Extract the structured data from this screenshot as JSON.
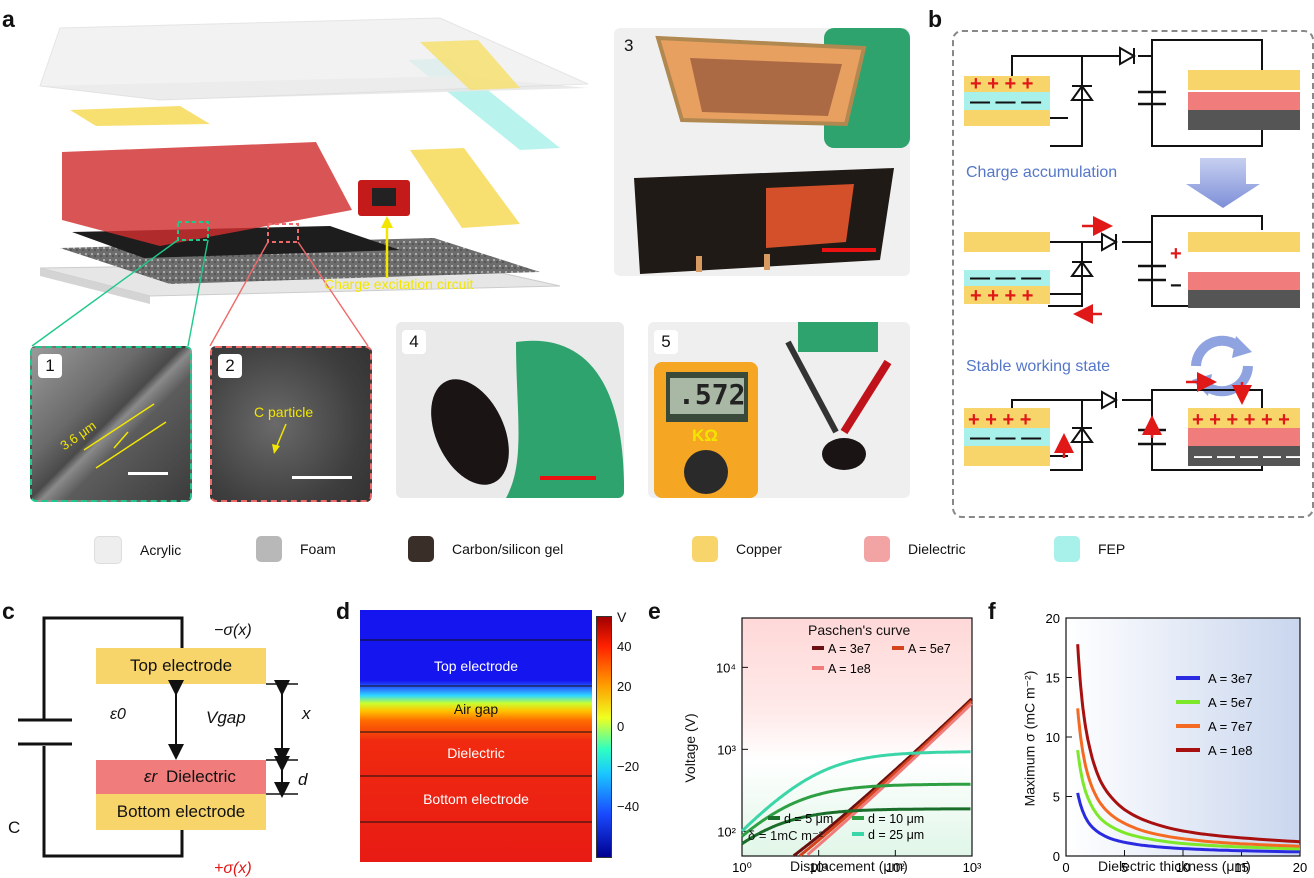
{
  "panel_labels": {
    "a": "a",
    "b": "b",
    "c": "c",
    "d": "d",
    "e": "e",
    "f": "f"
  },
  "panel_a": {
    "callout": "Charge excitation circuit",
    "insets": [
      "1",
      "2",
      "3",
      "4",
      "5"
    ],
    "thickness": "3.6 μm",
    "particle": "C particle",
    "meter_reading": ".572",
    "meter_unit": "KΩ"
  },
  "panel_b": {
    "step1": "Charge accumulation",
    "step2": "Stable working state"
  },
  "legend": [
    {
      "label": "Acrylic",
      "color": "#eeeeee"
    },
    {
      "label": "Foam",
      "color": "#b8b8b8"
    },
    {
      "label": "Carbon/silicon gel",
      "color": "#3a2e28"
    },
    {
      "label": "Copper",
      "color": "#f8d56a"
    },
    {
      "label": "Dielectric",
      "color": "#f2a3a3"
    },
    {
      "label": "FEP",
      "color": "#a8f0ea"
    }
  ],
  "panel_c": {
    "top_electrode": "Top electrode",
    "dielectric": "Dielectric",
    "bottom_electrode": "Bottom electrode",
    "eps0": "ε0",
    "eps_r": "εr",
    "vgap": "Vgap",
    "x": "x",
    "d": "d",
    "C": "C",
    "minus_sigma": "−σ(x)",
    "plus_sigma": "+σ(x)"
  },
  "panel_d": {
    "layers": [
      "Top electrode",
      "Air gap",
      "Dielectric",
      "Bottom electrode"
    ],
    "colorbar_unit": "V",
    "colorbar_ticks": [
      "40",
      "20",
      "0",
      "−20",
      "−40"
    ]
  },
  "chart_data": [
    {
      "panel": "e",
      "type": "line",
      "xscale": "log",
      "yscale": "log",
      "xlabel": "Displacement (μm)",
      "ylabel": "Voltage (V)",
      "xlim": [
        1,
        1000
      ],
      "ylim": [
        50,
        40000
      ],
      "xticks": [
        "10⁰",
        "10¹",
        "10²",
        "10³"
      ],
      "yticks": [
        "10²",
        "10³",
        "10⁴"
      ],
      "annotation_title": "Paschen's curve",
      "annotation_delta": "δ = 1mC m⁻²",
      "series": [
        {
          "name": "A = 3e7",
          "kind": "paschen",
          "color": "#6b1010",
          "A": 30000000.0
        },
        {
          "name": "A = 5e7",
          "kind": "paschen",
          "color": "#d4441c",
          "A": 50000000.0
        },
        {
          "name": "A = 1e8",
          "kind": "paschen",
          "color": "#f07b7b",
          "A": 100000000.0
        },
        {
          "name": "d = 5 μm",
          "kind": "gap",
          "color": "#1a6e2a",
          "d": 5
        },
        {
          "name": "d = 10 μm",
          "kind": "gap",
          "color": "#2ea043",
          "d": 10
        },
        {
          "name": "d = 25 μm",
          "kind": "gap",
          "color": "#3ad6a8",
          "d": 25
        }
      ]
    },
    {
      "panel": "f",
      "type": "line",
      "xlabel": "Dielectric thickness (μm)",
      "ylabel": "Maximum σ (mC m⁻²)",
      "xlim": [
        0,
        20
      ],
      "ylim": [
        0,
        20
      ],
      "xticks": [
        "0",
        "5",
        "10",
        "15",
        "20"
      ],
      "yticks": [
        "0",
        "5",
        "10",
        "15",
        "20"
      ],
      "series": [
        {
          "name": "A = 3e7",
          "color": "#2a2ae0",
          "x": [
            1,
            1.5,
            2,
            3,
            4,
            5,
            7,
            10,
            13,
            16,
            20
          ],
          "values": [
            5.3,
            3.6,
            2.7,
            1.85,
            1.4,
            1.15,
            0.85,
            0.62,
            0.5,
            0.42,
            0.35
          ]
        },
        {
          "name": "A = 5e7",
          "color": "#7de82a",
          "x": [
            1,
            1.5,
            2,
            3,
            4,
            5,
            7,
            10,
            13,
            16,
            20
          ],
          "values": [
            8.9,
            6.0,
            4.6,
            3.1,
            2.4,
            1.95,
            1.45,
            1.05,
            0.85,
            0.72,
            0.6
          ]
        },
        {
          "name": "A = 7e7",
          "color": "#f56a22",
          "x": [
            1,
            1.5,
            2,
            3,
            4,
            5,
            7,
            10,
            13,
            16,
            20
          ],
          "values": [
            12.4,
            8.4,
            6.4,
            4.35,
            3.35,
            2.75,
            2.0,
            1.45,
            1.15,
            0.98,
            0.82
          ]
        },
        {
          "name": "A = 1e8",
          "color": "#a81010",
          "x": [
            1,
            1.5,
            2,
            3,
            4,
            5,
            7,
            10,
            13,
            16,
            20
          ],
          "values": [
            17.8,
            12.0,
            9.2,
            6.2,
            4.8,
            3.9,
            2.9,
            2.1,
            1.7,
            1.45,
            1.2
          ]
        }
      ]
    }
  ]
}
